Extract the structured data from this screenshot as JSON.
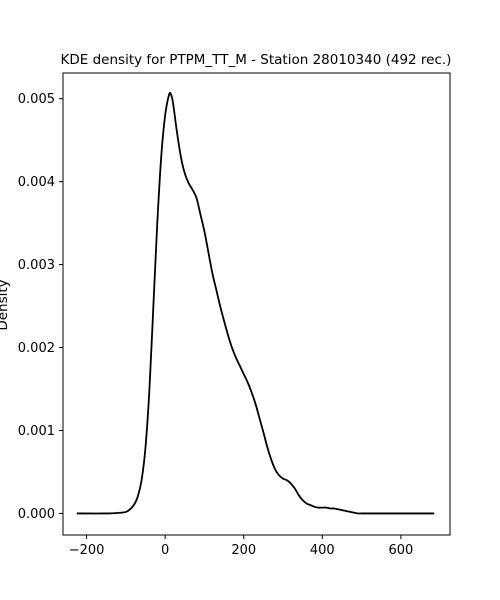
{
  "chart_data": {
    "type": "line",
    "title": "KDE density for PTPM_TT_M - Station 28010340 (492 rec.)",
    "xlabel": "",
    "ylabel": "Density",
    "xlim": [
      -260,
      725
    ],
    "ylim": [
      -0.00026,
      0.00531
    ],
    "xticks": [
      -200,
      0,
      200,
      400,
      600
    ],
    "xtick_labels": [
      "−200",
      "0",
      "200",
      "400",
      "600"
    ],
    "yticks": [
      0.0,
      0.001,
      0.002,
      0.003,
      0.004,
      0.005
    ],
    "ytick_labels": [
      "0.000",
      "0.001",
      "0.002",
      "0.003",
      "0.004",
      "0.005"
    ],
    "grid": false,
    "legend": "none",
    "line_color": "#000000",
    "series": [
      {
        "x": [
          -225,
          -150,
          -110,
          -95,
          -80,
          -70,
          -60,
          -50,
          -40,
          -30,
          -20,
          -10,
          0,
          10,
          15,
          20,
          30,
          40,
          50,
          60,
          70,
          80,
          90,
          100,
          110,
          120,
          130,
          140,
          150,
          160,
          170,
          180,
          190,
          200,
          210,
          220,
          230,
          240,
          250,
          260,
          270,
          280,
          290,
          300,
          310,
          320,
          330,
          340,
          350,
          360,
          370,
          380,
          390,
          400,
          410,
          420,
          430,
          440,
          450,
          460,
          470,
          480,
          490,
          500,
          520,
          550,
          600,
          685
        ],
        "y": [
          0.0,
          0.0,
          1e-05,
          3e-05,
          0.0001,
          0.0002,
          0.0004,
          0.0008,
          0.0015,
          0.0025,
          0.0035,
          0.0043,
          0.0048,
          0.00505,
          0.00505,
          0.00495,
          0.0046,
          0.0043,
          0.0041,
          0.00398,
          0.0039,
          0.0038,
          0.0036,
          0.0034,
          0.00315,
          0.0029,
          0.0027,
          0.0025,
          0.00232,
          0.00215,
          0.002,
          0.00188,
          0.00178,
          0.00168,
          0.00158,
          0.00146,
          0.00132,
          0.00115,
          0.00098,
          0.0008,
          0.00065,
          0.00053,
          0.00046,
          0.00042,
          0.0004,
          0.00036,
          0.0003,
          0.00022,
          0.00016,
          0.00012,
          0.0001,
          8e-05,
          7e-05,
          7e-05,
          7e-05,
          6e-05,
          6e-05,
          5e-05,
          4e-05,
          3e-05,
          2e-05,
          1e-05,
          0.0,
          0.0,
          0.0,
          0.0,
          0.0,
          0.0
        ]
      }
    ]
  }
}
